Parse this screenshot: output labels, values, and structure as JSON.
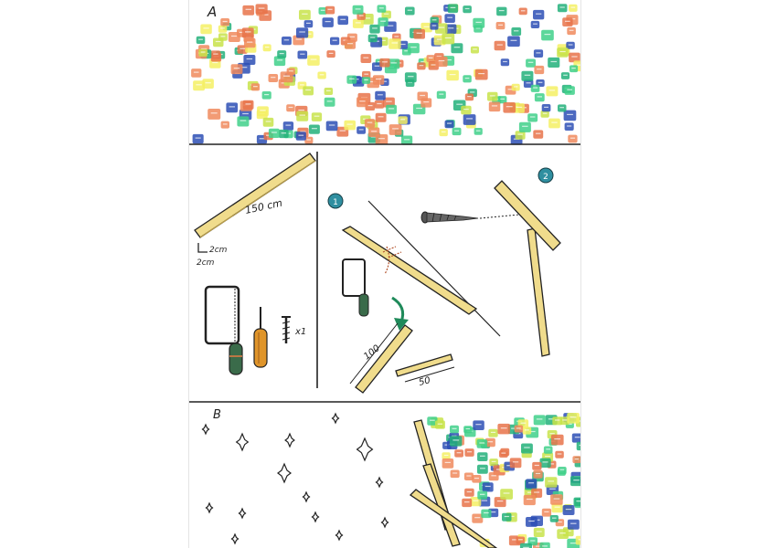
{
  "sections": {
    "a": {
      "label": "A"
    },
    "b": {
      "label": "B"
    }
  },
  "plank": {
    "length_label": "150 cm"
  },
  "cross_section": {
    "width_label": "2cm",
    "height_label": "2cm"
  },
  "tools": {
    "screw_count_label": "x1"
  },
  "steps": [
    {
      "number": "1"
    },
    {
      "number": "2"
    }
  ],
  "cut_pieces": {
    "long_label": "100",
    "short_label": "50"
  },
  "colors": {
    "ink": "#222222",
    "wood": "#f0dc8c",
    "step_badge": "#2f8fa0",
    "arrow": "#1f8a5a",
    "saw_handle": "#3a6b4a",
    "screwdriver_handle": "#e0952a",
    "cube_palette": [
      "#f08a5d",
      "#2d4fb5",
      "#22b07a",
      "#c8e34a",
      "#f4f064",
      "#3fd08a",
      "#e8734a"
    ]
  }
}
